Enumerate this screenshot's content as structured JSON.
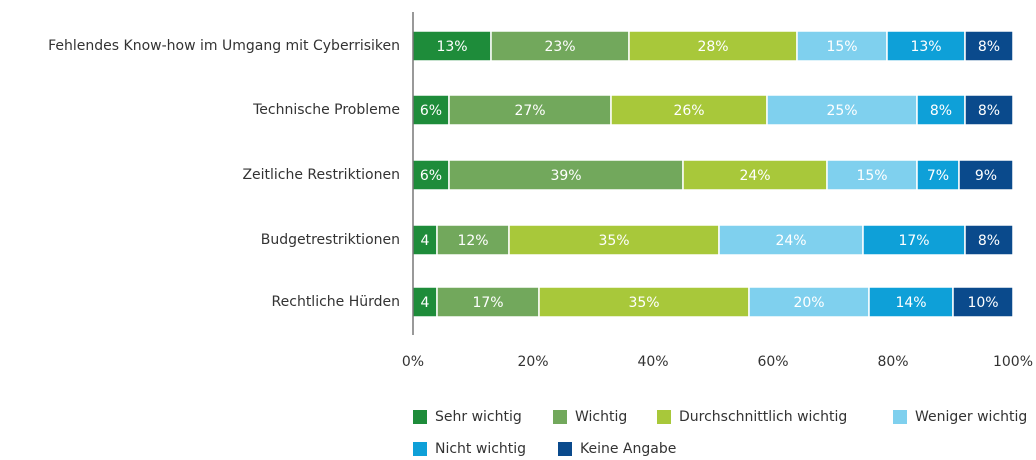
{
  "chart_data": {
    "type": "stacked-bar-horizontal",
    "categories": [
      "Fehlendes Know-how im Umgang mit Cyberrisiken",
      "Technische Probleme",
      "Zeitliche Restriktionen",
      "Budgetrestriktionen",
      "Rechtliche Hürden"
    ],
    "series": [
      {
        "name": "Sehr wichtig",
        "color": "#1e8c3a",
        "values": [
          13,
          6,
          6,
          4,
          4
        ],
        "value_labels": [
          "13%",
          "6%",
          "6%",
          "4",
          "4"
        ]
      },
      {
        "name": "Wichtig",
        "color": "#72a85c",
        "values": [
          23,
          27,
          39,
          12,
          17
        ],
        "value_labels": [
          "23%",
          "27%",
          "39%",
          "12%",
          "17%"
        ]
      },
      {
        "name": "Durchschnittlich wichtig",
        "color": "#a8c83a",
        "values": [
          28,
          26,
          24,
          35,
          35
        ],
        "value_labels": [
          "28%",
          "26%",
          "24%",
          "35%",
          "35%"
        ]
      },
      {
        "name": "Weniger wichtig",
        "color": "#7fd0ee",
        "values": [
          15,
          25,
          15,
          24,
          20
        ],
        "value_labels": [
          "15%",
          "25%",
          "15%",
          "24%",
          "20%"
        ]
      },
      {
        "name": "Nicht wichtig",
        "color": "#0ea0d8",
        "values": [
          13,
          8,
          7,
          17,
          14
        ],
        "value_labels": [
          "13%",
          "8%",
          "7%",
          "17%",
          "14%"
        ]
      },
      {
        "name": "Keine Angabe",
        "color": "#0a4a8c",
        "values": [
          8,
          8,
          9,
          8,
          10
        ],
        "value_labels": [
          "8%",
          "8%",
          "9%",
          "8%",
          "10%"
        ]
      }
    ],
    "xlim": [
      0,
      100
    ],
    "xticks": [
      {
        "value": 0,
        "label": "0%"
      },
      {
        "value": 20,
        "label": "20%"
      },
      {
        "value": 40,
        "label": "40%"
      },
      {
        "value": 60,
        "label": "60%"
      },
      {
        "value": 80,
        "label": "80%"
      },
      {
        "value": 100,
        "label": "100%"
      }
    ]
  }
}
